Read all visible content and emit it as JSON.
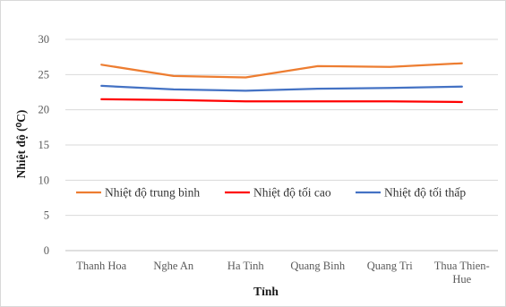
{
  "chart_data": {
    "type": "line",
    "title": "",
    "xlabel": "Tỉnh",
    "ylabel": "Nhiệt độ (⁰C)",
    "categories": [
      "Thanh Hoa",
      "Nghe An",
      "Ha Tinh",
      "Quang Binh",
      "Quang Tri",
      "Thua Thien-Hue"
    ],
    "category_display": [
      [
        "Thanh Hoa"
      ],
      [
        "Nghe An"
      ],
      [
        "Ha Tinh"
      ],
      [
        "Quang Binh"
      ],
      [
        "Quang Tri"
      ],
      [
        "Thua Thien-",
        "Hue"
      ]
    ],
    "ylim": [
      0,
      30
    ],
    "yticks": [
      0,
      5,
      10,
      15,
      20,
      25,
      30
    ],
    "grid": true,
    "legend_position": "middle",
    "series": [
      {
        "name": "Nhiệt độ trung bình",
        "color": "#ed7d31",
        "values": [
          26.4,
          24.8,
          24.6,
          26.2,
          26.1,
          26.6
        ]
      },
      {
        "name": "Nhiệt độ tối cao",
        "color": "#ff0000",
        "values": [
          21.5,
          21.4,
          21.2,
          21.2,
          21.2,
          21.1
        ]
      },
      {
        "name": "Nhiệt độ tối thấp",
        "color": "#4472c4",
        "values": [
          23.4,
          22.9,
          22.7,
          23.0,
          23.1,
          23.3
        ]
      }
    ]
  }
}
